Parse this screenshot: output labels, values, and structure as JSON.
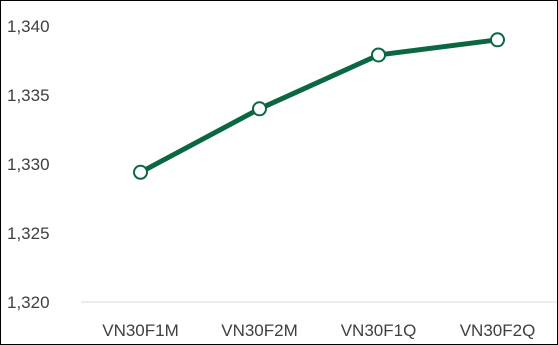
{
  "chart_data": {
    "type": "line",
    "title": "",
    "xlabel": "",
    "ylabel": "",
    "categories": [
      "VN30F1M",
      "VN30F2M",
      "VN30F1Q",
      "VN30F2Q"
    ],
    "series": [
      {
        "values": [
          1329.4,
          1334.0,
          1337.9,
          1339.0
        ],
        "color": "#0b6642",
        "marker": "hollow-circle"
      }
    ],
    "ylim": [
      1320,
      1340
    ],
    "y_ticks": [
      1320,
      1325,
      1330,
      1335,
      1340
    ],
    "y_tick_labels": [
      "1,320",
      "1,325",
      "1,330",
      "1,335",
      "1,340"
    ],
    "grid": false,
    "legend": "none",
    "x_axis_line_color": "#d9d9d9"
  }
}
